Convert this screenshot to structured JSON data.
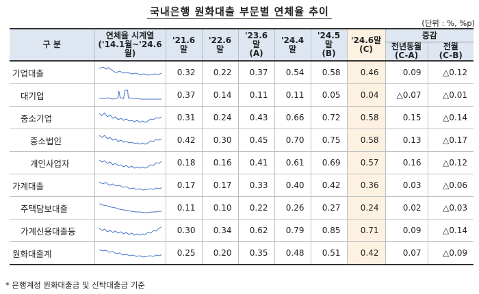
{
  "title": "국내은행 원화대출 부문별 연체율 추이",
  "unit": "(단위 : %, %p)",
  "headers": {
    "category": "구    분",
    "spark_line1": "연체율 시계열",
    "spark_line2": "('14.1월~'24.6월)",
    "c1": "'21.6말",
    "c2": "'22.6말",
    "c3_line1": "'23.6말",
    "c3_line2": "(A)",
    "c4": "'24.4말",
    "c5_line1": "'24.5말",
    "c5_line2": "(B)",
    "c6_line1": "'24.6말",
    "c6_line2": "(C)",
    "change": "증감",
    "yoy_line1": "전년동월",
    "yoy_line2": "(C-A)",
    "mom_line1": "전월",
    "mom_line2": "(C-B)"
  },
  "rows": [
    {
      "label": "기업대출",
      "v": [
        "0.32",
        "0.22",
        "0.37",
        "0.54",
        "0.58",
        "0.46"
      ],
      "yoy": "0.09",
      "mom": "△0.12"
    },
    {
      "label": "대기업",
      "v": [
        "0.37",
        "0.14",
        "0.11",
        "0.11",
        "0.05",
        "0.04"
      ],
      "yoy": "△0.07",
      "mom": "△0.01"
    },
    {
      "label": "중소기업",
      "v": [
        "0.31",
        "0.24",
        "0.43",
        "0.66",
        "0.72",
        "0.58"
      ],
      "yoy": "0.15",
      "mom": "△0.14"
    },
    {
      "label": "중소법인",
      "v": [
        "0.42",
        "0.30",
        "0.45",
        "0.70",
        "0.75",
        "0.58"
      ],
      "yoy": "0.13",
      "mom": "△0.17"
    },
    {
      "label": "개인사업자",
      "v": [
        "0.18",
        "0.16",
        "0.41",
        "0.61",
        "0.69",
        "0.57"
      ],
      "yoy": "0.16",
      "mom": "△0.12"
    },
    {
      "label": "가계대출",
      "v": [
        "0.17",
        "0.17",
        "0.33",
        "0.40",
        "0.42",
        "0.36"
      ],
      "yoy": "0.03",
      "mom": "△0.06"
    },
    {
      "label": "주택담보대출",
      "v": [
        "0.11",
        "0.10",
        "0.22",
        "0.26",
        "0.27",
        "0.24"
      ],
      "yoy": "0.02",
      "mom": "△0.03"
    },
    {
      "label": "가계신용대출등",
      "v": [
        "0.30",
        "0.34",
        "0.62",
        "0.79",
        "0.85",
        "0.71"
      ],
      "yoy": "0.09",
      "mom": "△0.14"
    },
    {
      "label": "원화대출계",
      "v": [
        "0.25",
        "0.20",
        "0.35",
        "0.48",
        "0.51",
        "0.42"
      ],
      "yoy": "0.07",
      "mom": "△0.09"
    }
  ],
  "note": "* 은행계정 원화대출금 및 신탁대출금 기준",
  "colors": {
    "header_bg": "#dde6f1",
    "highlight_bg": "#fdf2e2",
    "sparkline": "#4472c4"
  }
}
